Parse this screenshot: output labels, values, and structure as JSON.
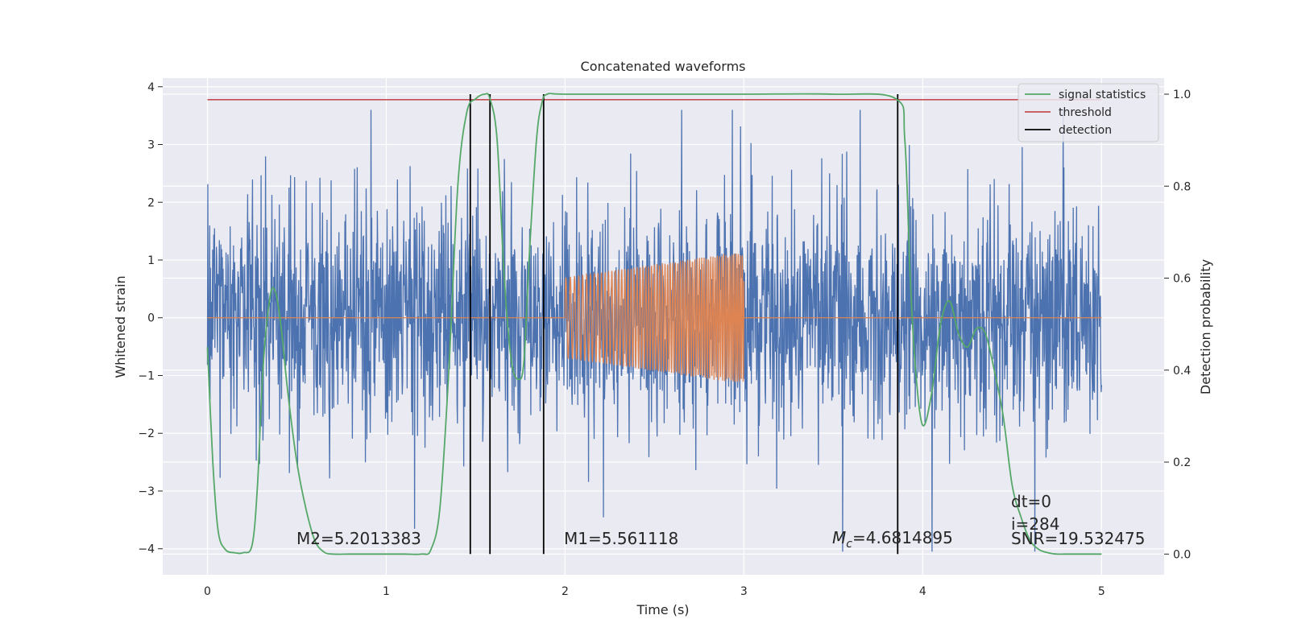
{
  "chart_data": {
    "type": "line",
    "title": "Concatenated waveforms",
    "xlabel": "Time (s)",
    "ylabel": "Whitened strain",
    "ylabel_right": "Detection probability",
    "xlim": [
      -0.25,
      5.35
    ],
    "ylim": [
      -4.45,
      4.15
    ],
    "ylim_right": [
      -0.045,
      1.035
    ],
    "x_ticks": [
      0,
      1,
      2,
      3,
      4,
      5
    ],
    "y_ticks": [
      -4,
      -3,
      -2,
      -1,
      0,
      1,
      2,
      3,
      4
    ],
    "y_ticks_right": [
      0.0,
      0.2,
      0.4,
      0.6,
      0.8,
      1.0
    ],
    "x_tick_labels": [
      "0",
      "1",
      "2",
      "3",
      "4",
      "5"
    ],
    "y_tick_labels": [
      "−4",
      "−3",
      "−2",
      "−1",
      "0",
      "1",
      "2",
      "3",
      "4"
    ],
    "y_tick_labels_right": [
      "0.0",
      "0.2",
      "0.4",
      "0.6",
      "0.8",
      "1.0"
    ],
    "grid": true,
    "legend_position": "top-right",
    "colors": {
      "strain": "#4c72b0",
      "template": "#dd8452",
      "signal_statistics": "#55a868",
      "threshold": "#c44e52",
      "detection": "#000000",
      "background": "#eaeaf2"
    },
    "series": [
      {
        "name": "strain",
        "axis": "left",
        "description_values": "noisy whitened strain, duration 0-5 s, typical amplitude about 1, spikes between -4 and +3.6"
      },
      {
        "name": "template",
        "axis": "left",
        "x_range": [
          0,
          5
        ],
        "zero_outside": true,
        "chirp_start": 2.0,
        "chirp_end": 3.0,
        "amplitude_start": 0.7,
        "amplitude_end": 1.15
      },
      {
        "name": "signal statistics",
        "axis": "right",
        "x": [
          0.0,
          0.03,
          0.06,
          0.1,
          0.15,
          0.2,
          0.25,
          0.28,
          0.31,
          0.35,
          0.38,
          0.41,
          0.45,
          0.5,
          0.55,
          0.6,
          0.65,
          0.7,
          0.8,
          0.9,
          1.0,
          1.1,
          1.2,
          1.25,
          1.3,
          1.35,
          1.4,
          1.45,
          1.5,
          1.55,
          1.58,
          1.62,
          1.66,
          1.7,
          1.74,
          1.77,
          1.8,
          1.84,
          1.87,
          1.9,
          2.0,
          2.5,
          3.0,
          3.5,
          3.85,
          3.9,
          3.93,
          3.96,
          4.0,
          4.05,
          4.1,
          4.15,
          4.2,
          4.25,
          4.3,
          4.35,
          4.4,
          4.45,
          4.5,
          4.55,
          4.6,
          4.65,
          4.7,
          4.75,
          4.8,
          4.9,
          5.0
        ],
        "values": [
          0.45,
          0.2,
          0.05,
          0.01,
          0.003,
          0.003,
          0.02,
          0.15,
          0.4,
          0.56,
          0.57,
          0.5,
          0.35,
          0.2,
          0.1,
          0.03,
          0.005,
          0.0,
          0.0,
          0.0,
          0.0,
          0.0,
          0.0,
          0.01,
          0.1,
          0.4,
          0.8,
          0.96,
          0.99,
          1.0,
          0.99,
          0.9,
          0.6,
          0.42,
          0.38,
          0.42,
          0.65,
          0.9,
          0.98,
          1.0,
          1.0,
          1.0,
          1.0,
          1.0,
          0.99,
          0.9,
          0.6,
          0.4,
          0.28,
          0.35,
          0.5,
          0.55,
          0.48,
          0.45,
          0.49,
          0.48,
          0.4,
          0.3,
          0.15,
          0.08,
          0.03,
          0.01,
          0.003,
          0.0,
          0.0,
          0.0,
          0.0
        ]
      },
      {
        "name": "threshold",
        "axis": "right",
        "x": [
          0,
          5
        ],
        "values": [
          0.988,
          0.988
        ]
      },
      {
        "name": "detection",
        "axis": "right",
        "vertical_lines_x": [
          1.47,
          1.58,
          1.88,
          3.86
        ],
        "vertical_lines_range": [
          0.0,
          1.0
        ]
      }
    ],
    "legend": [
      "signal statistics",
      "threshold",
      "detection"
    ],
    "annotations": {
      "m2": "M2=5.2013383",
      "m1": "M1=5.561118",
      "mc_symbol": "M",
      "mc_sub": "c",
      "mc_value": "=4.6814895",
      "dt": "dt=0",
      "i": "i=284",
      "snr": "SNR=19.532475"
    }
  }
}
